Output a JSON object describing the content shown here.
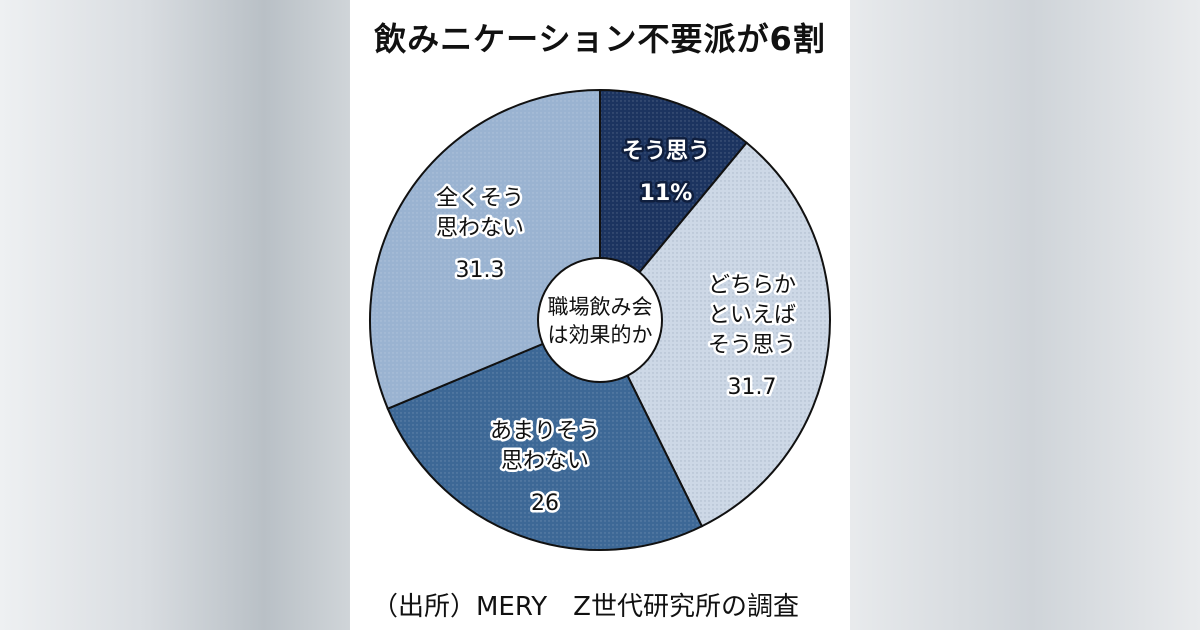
{
  "title": "飲みニケーション不要派が6割",
  "source": "（出所）MERY　Z世代研究所の調査",
  "chart_data": {
    "type": "pie",
    "style": "donut",
    "center_label": [
      "職場飲み会",
      "は効果的か"
    ],
    "slices": [
      {
        "label": [
          "そう思う"
        ],
        "value": 11,
        "value_text": "11%",
        "color": "#1c3460",
        "pattern": "dots-light",
        "text": "dark"
      },
      {
        "label": [
          "どちらか",
          "といえば",
          "そう思う"
        ],
        "value": 31.7,
        "value_text": "31.7",
        "color": "#cdd8e6",
        "pattern": "dots-dark",
        "text": "light"
      },
      {
        "label": [
          "あまりそう",
          "思わない"
        ],
        "value": 26,
        "value_text": "26",
        "color": "#3d6896",
        "pattern": "dots-light",
        "text": "light"
      },
      {
        "label": [
          "全くそう",
          "思わない"
        ],
        "value": 31.3,
        "value_text": "31.3",
        "color": "#9ab3d1",
        "pattern": "dots-light",
        "text": "light"
      }
    ]
  }
}
